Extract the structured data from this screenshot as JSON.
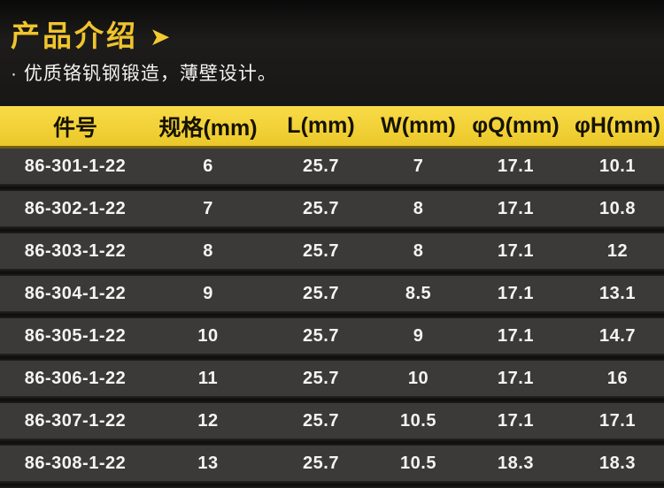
{
  "header": {
    "title": "产品介绍",
    "arrow_icon": "➤",
    "feature_text": "· 优质铬钒钢锻造，薄壁设计。",
    "title_color": "#f0c42d"
  },
  "table": {
    "header_bg_color": "#f2d138",
    "header_text_color": "#161300",
    "row_bg_color": "#3b3a38",
    "row_text_color": "#f4f4f2",
    "columns": [
      "件号",
      "规格(mm)",
      "L(mm)",
      "W(mm)",
      "φQ(mm)",
      "φH(mm)"
    ],
    "rows": [
      {
        "part": "86-301-1-22",
        "spec": "6",
        "l": "25.7",
        "w": "7",
        "q": "17.1",
        "h": "10.1"
      },
      {
        "part": "86-302-1-22",
        "spec": "7",
        "l": "25.7",
        "w": "8",
        "q": "17.1",
        "h": "10.8"
      },
      {
        "part": "86-303-1-22",
        "spec": "8",
        "l": "25.7",
        "w": "8",
        "q": "17.1",
        "h": "12"
      },
      {
        "part": "86-304-1-22",
        "spec": "9",
        "l": "25.7",
        "w": "8.5",
        "q": "17.1",
        "h": "13.1"
      },
      {
        "part": "86-305-1-22",
        "spec": "10",
        "l": "25.7",
        "w": "9",
        "q": "17.1",
        "h": "14.7"
      },
      {
        "part": "86-306-1-22",
        "spec": "11",
        "l": "25.7",
        "w": "10",
        "q": "17.1",
        "h": "16"
      },
      {
        "part": "86-307-1-22",
        "spec": "12",
        "l": "25.7",
        "w": "10.5",
        "q": "17.1",
        "h": "17.1"
      },
      {
        "part": "86-308-1-22",
        "spec": "13",
        "l": "25.7",
        "w": "10.5",
        "q": "18.3",
        "h": "18.3"
      }
    ]
  }
}
